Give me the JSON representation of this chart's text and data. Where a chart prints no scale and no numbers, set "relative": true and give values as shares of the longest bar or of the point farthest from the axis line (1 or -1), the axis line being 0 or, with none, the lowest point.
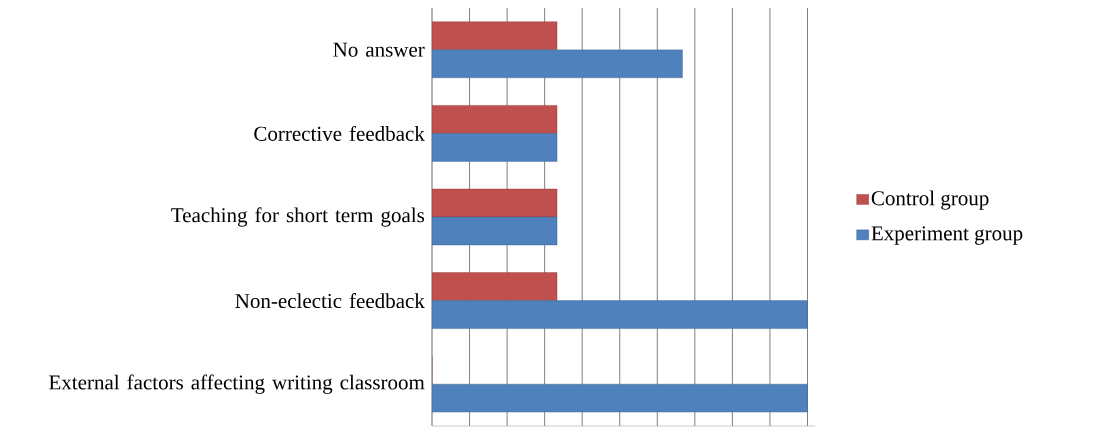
{
  "chart_data": {
    "type": "bar",
    "orientation": "horizontal",
    "relative": true,
    "grid": "x",
    "legend": "right",
    "categories": [
      "No answer",
      "Corrective feedback",
      "Teaching for short term goals",
      "Non-eclectic feedback",
      "External factors affecting writing classroom"
    ],
    "series": [
      {
        "name": "Control group",
        "color": "#c0504d",
        "values": [
          0.333,
          0.333,
          0.333,
          0.333,
          0
        ]
      },
      {
        "name": "Experiment group",
        "color": "#4f81bd",
        "values": [
          0.667,
          0.333,
          0.333,
          1,
          1
        ]
      }
    ]
  }
}
